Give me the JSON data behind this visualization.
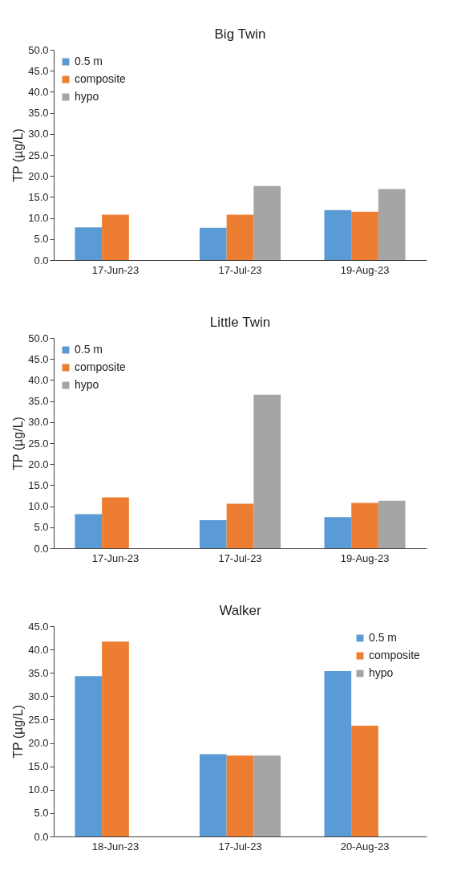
{
  "chart_data": [
    {
      "type": "bar",
      "title": "Big Twin",
      "ylabel": "TP (µg/L)",
      "categories": [
        "17-Jun-23",
        "17-Jul-23",
        "19-Aug-23"
      ],
      "series": [
        {
          "name": "0.5 m",
          "color": "#5b9bd5",
          "values": [
            7.8,
            7.7,
            11.9
          ]
        },
        {
          "name": "composite",
          "color": "#ed7d31",
          "values": [
            10.8,
            10.8,
            11.5
          ]
        },
        {
          "name": "hypo",
          "color": "#a5a5a5",
          "values": [
            null,
            17.6,
            16.9
          ]
        }
      ],
      "ylim": [
        0,
        50
      ],
      "yticks": [
        {
          "value": 0,
          "label": "0.0"
        },
        {
          "value": 5,
          "label": "5.0"
        },
        {
          "value": 10,
          "label": "10.0"
        },
        {
          "value": 15,
          "label": "15.0"
        },
        {
          "value": 20,
          "label": "20.0"
        },
        {
          "value": 25,
          "label": "25.0"
        },
        {
          "value": 30,
          "label": "30.0"
        },
        {
          "value": 35,
          "label": "35.0"
        },
        {
          "value": 40,
          "label": "40.0"
        },
        {
          "value": 45,
          "label": "45.0"
        },
        {
          "value": 50,
          "label": "50.0"
        }
      ],
      "grid": false,
      "legend": "top left"
    },
    {
      "type": "bar",
      "title": "Little Twin",
      "ylabel": "TP (µg/L)",
      "categories": [
        "17-Jun-23",
        "17-Jul-23",
        "19-Aug-23"
      ],
      "series": [
        {
          "name": "0.5 m",
          "color": "#5b9bd5",
          "values": [
            8.1,
            6.7,
            7.4
          ]
        },
        {
          "name": "composite",
          "color": "#ed7d31",
          "values": [
            12.1,
            10.6,
            10.8
          ]
        },
        {
          "name": "hypo",
          "color": "#a5a5a5",
          "values": [
            null,
            36.5,
            11.3
          ]
        }
      ],
      "ylim": [
        0,
        50
      ],
      "yticks": [
        {
          "value": 0,
          "label": "0.0"
        },
        {
          "value": 5,
          "label": "5.0"
        },
        {
          "value": 10,
          "label": "10.0"
        },
        {
          "value": 15,
          "label": "15.0"
        },
        {
          "value": 20,
          "label": "20.0"
        },
        {
          "value": 25,
          "label": "25.0"
        },
        {
          "value": 30,
          "label": "30.0"
        },
        {
          "value": 35,
          "label": "35.0"
        },
        {
          "value": 40,
          "label": "40.0"
        },
        {
          "value": 45,
          "label": "45.0"
        },
        {
          "value": 50,
          "label": "50.0"
        }
      ],
      "grid": false,
      "legend": "top left"
    },
    {
      "type": "bar",
      "title": "Walker",
      "ylabel": "TP (µg/L)",
      "categories": [
        "18-Jun-23",
        "17-Jul-23",
        "20-Aug-23"
      ],
      "series": [
        {
          "name": "0.5 m",
          "color": "#5b9bd5",
          "values": [
            34.3,
            17.6,
            35.4
          ]
        },
        {
          "name": "composite",
          "color": "#ed7d31",
          "values": [
            41.7,
            17.3,
            23.7
          ]
        },
        {
          "name": "hypo",
          "color": "#a5a5a5",
          "values": [
            null,
            17.3,
            null
          ]
        }
      ],
      "ylim": [
        0,
        45
      ],
      "yticks": [
        {
          "value": 0,
          "label": "0.0"
        },
        {
          "value": 5,
          "label": "5.0"
        },
        {
          "value": 10,
          "label": "10.0"
        },
        {
          "value": 15,
          "label": "15.0"
        },
        {
          "value": 20,
          "label": "20.0"
        },
        {
          "value": 25,
          "label": "25.0"
        },
        {
          "value": 30,
          "label": "30.0"
        },
        {
          "value": 35,
          "label": "35.0"
        },
        {
          "value": 40,
          "label": "40.0"
        },
        {
          "value": 45,
          "label": "45.0"
        }
      ],
      "grid": false,
      "legend": "top right"
    }
  ]
}
